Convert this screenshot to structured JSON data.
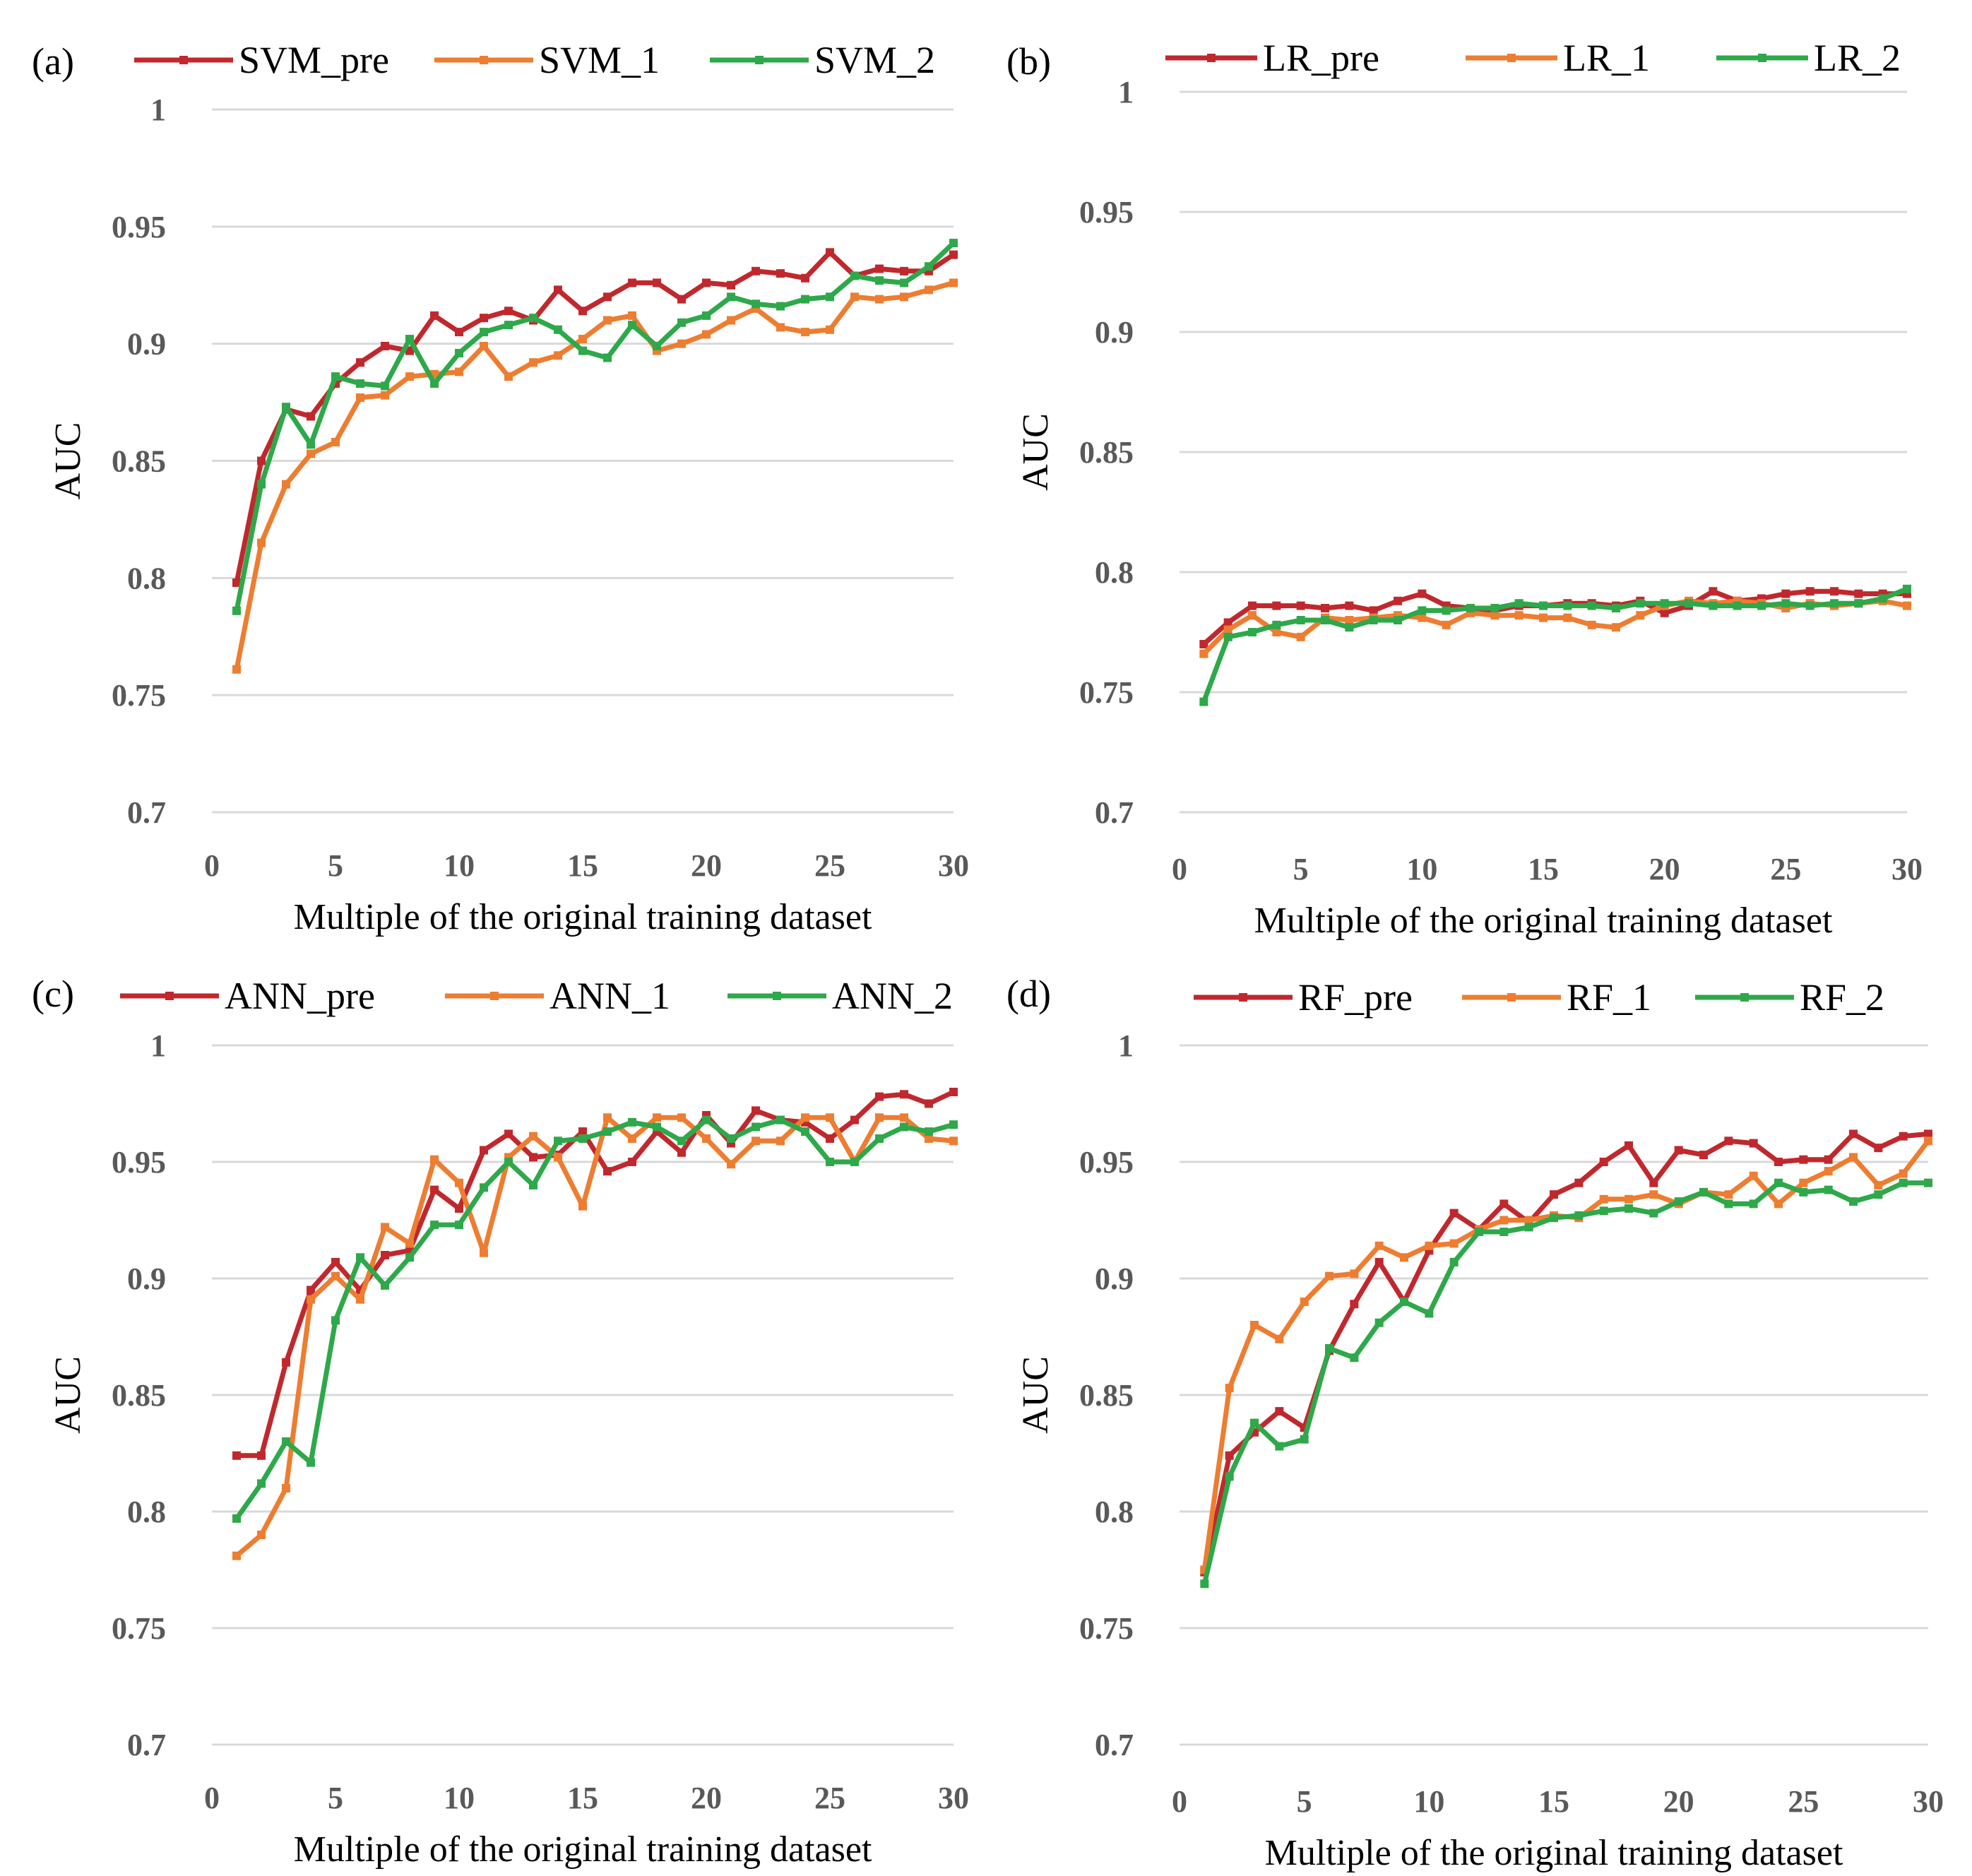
{
  "colors": {
    "pre": "#c0282d",
    "one": "#ed7d31",
    "two": "#2ea84a"
  },
  "chart_data": [
    {
      "type": "line",
      "panel_label": "(a)",
      "xlabel": "Multiple of the original training dataset",
      "ylabel": "AUC",
      "xlim": [
        0,
        30
      ],
      "ylim": [
        0.7,
        1.0
      ],
      "x_ticks": [
        0,
        5,
        10,
        15,
        20,
        25,
        30
      ],
      "y_ticks": [
        0.7,
        0.75,
        0.8,
        0.85,
        0.9,
        0.95,
        1.0
      ],
      "y_tick_labels": [
        "0.7",
        "0.75",
        "0.8",
        "0.85",
        "0.9",
        "0.95",
        "1"
      ],
      "x": [
        1,
        2,
        3,
        4,
        5,
        6,
        7,
        8,
        9,
        10,
        11,
        12,
        13,
        14,
        15,
        16,
        17,
        18,
        19,
        20,
        21,
        22,
        23,
        24,
        25,
        26,
        27,
        28,
        29,
        30
      ],
      "series": [
        {
          "name": "SVM_pre",
          "color_key": "pre",
          "values": [
            0.798,
            0.85,
            0.872,
            0.869,
            0.883,
            0.892,
            0.899,
            0.897,
            0.912,
            0.905,
            0.911,
            0.914,
            0.91,
            0.923,
            0.914,
            0.92,
            0.926,
            0.926,
            0.919,
            0.926,
            0.925,
            0.931,
            0.93,
            0.928,
            0.939,
            0.929,
            0.932,
            0.931,
            0.931,
            0.938
          ]
        },
        {
          "name": "SVM_1",
          "color_key": "one",
          "values": [
            0.761,
            0.815,
            0.84,
            0.853,
            0.858,
            0.877,
            0.878,
            0.886,
            0.887,
            0.888,
            0.899,
            0.886,
            0.892,
            0.895,
            0.902,
            0.91,
            0.912,
            0.897,
            0.9,
            0.904,
            0.91,
            0.915,
            0.907,
            0.905,
            0.906,
            0.92,
            0.919,
            0.92,
            0.923,
            0.926
          ]
        },
        {
          "name": "SVM_2",
          "color_key": "two",
          "values": [
            0.786,
            0.84,
            0.873,
            0.857,
            0.886,
            0.883,
            0.882,
            0.902,
            0.883,
            0.896,
            0.905,
            0.908,
            0.911,
            0.906,
            0.897,
            0.894,
            0.908,
            0.899,
            0.909,
            0.912,
            0.92,
            0.917,
            0.916,
            0.919,
            0.92,
            0.929,
            0.927,
            0.926,
            0.933,
            0.943
          ]
        }
      ]
    },
    {
      "type": "line",
      "panel_label": "(b)",
      "xlabel": "Multiple of the original training dataset",
      "ylabel": "AUC",
      "xlim": [
        0,
        30
      ],
      "ylim": [
        0.7,
        1.0
      ],
      "x_ticks": [
        0,
        5,
        10,
        15,
        20,
        25,
        30
      ],
      "y_ticks": [
        0.7,
        0.75,
        0.8,
        0.85,
        0.9,
        0.95,
        1.0
      ],
      "y_tick_labels": [
        "0.7",
        "0.75",
        "0.8",
        "0.85",
        "0.9",
        "0.95",
        "1"
      ],
      "x": [
        1,
        2,
        3,
        4,
        5,
        6,
        7,
        8,
        9,
        10,
        11,
        12,
        13,
        14,
        15,
        16,
        17,
        18,
        19,
        20,
        21,
        22,
        23,
        24,
        25,
        26,
        27,
        28,
        29,
        30
      ],
      "series": [
        {
          "name": "LR_pre",
          "color_key": "pre",
          "values": [
            0.77,
            0.779,
            0.786,
            0.786,
            0.786,
            0.785,
            0.786,
            0.784,
            0.788,
            0.791,
            0.786,
            0.785,
            0.784,
            0.786,
            0.786,
            0.787,
            0.787,
            0.786,
            0.788,
            0.783,
            0.786,
            0.792,
            0.788,
            0.789,
            0.791,
            0.792,
            0.792,
            0.791,
            0.791,
            0.791
          ]
        },
        {
          "name": "LR_1",
          "color_key": "one",
          "values": [
            0.766,
            0.776,
            0.782,
            0.775,
            0.773,
            0.781,
            0.78,
            0.781,
            0.782,
            0.781,
            0.778,
            0.783,
            0.782,
            0.782,
            0.781,
            0.781,
            0.778,
            0.777,
            0.782,
            0.786,
            0.788,
            0.787,
            0.788,
            0.787,
            0.785,
            0.787,
            0.786,
            0.787,
            0.788,
            0.786
          ]
        },
        {
          "name": "LR_2",
          "color_key": "two",
          "values": [
            0.746,
            0.773,
            0.775,
            0.778,
            0.78,
            0.78,
            0.777,
            0.78,
            0.78,
            0.784,
            0.784,
            0.785,
            0.785,
            0.787,
            0.786,
            0.786,
            0.786,
            0.785,
            0.787,
            0.787,
            0.787,
            0.786,
            0.786,
            0.786,
            0.787,
            0.786,
            0.787,
            0.787,
            0.789,
            0.793
          ]
        }
      ]
    },
    {
      "type": "line",
      "panel_label": "(c)",
      "xlabel": "Multiple of the original training dataset",
      "ylabel": "AUC",
      "xlim": [
        0,
        30
      ],
      "ylim": [
        0.7,
        1.0
      ],
      "x_ticks": [
        0,
        5,
        10,
        15,
        20,
        25,
        30
      ],
      "y_ticks": [
        0.7,
        0.75,
        0.8,
        0.85,
        0.9,
        0.95,
        1.0
      ],
      "y_tick_labels": [
        "0.7",
        "0.75",
        "0.8",
        "0.85",
        "0.9",
        "0.95",
        "1"
      ],
      "x": [
        1,
        2,
        3,
        4,
        5,
        6,
        7,
        8,
        9,
        10,
        11,
        12,
        13,
        14,
        15,
        16,
        17,
        18,
        19,
        20,
        21,
        22,
        23,
        24,
        25,
        26,
        27,
        28,
        29,
        30
      ],
      "series": [
        {
          "name": "ANN_pre",
          "color_key": "pre",
          "values": [
            0.824,
            0.824,
            0.864,
            0.895,
            0.907,
            0.895,
            0.91,
            0.912,
            0.938,
            0.93,
            0.955,
            0.962,
            0.952,
            0.953,
            0.963,
            0.946,
            0.95,
            0.963,
            0.954,
            0.97,
            0.958,
            0.972,
            0.968,
            0.967,
            0.96,
            0.968,
            0.978,
            0.979,
            0.975,
            0.98
          ]
        },
        {
          "name": "ANN_1",
          "color_key": "one",
          "values": [
            0.781,
            0.79,
            0.81,
            0.891,
            0.901,
            0.891,
            0.922,
            0.915,
            0.951,
            0.941,
            0.911,
            0.952,
            0.961,
            0.952,
            0.931,
            0.969,
            0.96,
            0.969,
            0.969,
            0.96,
            0.949,
            0.959,
            0.959,
            0.969,
            0.969,
            0.95,
            0.969,
            0.969,
            0.96,
            0.959
          ]
        },
        {
          "name": "ANN_2",
          "color_key": "two",
          "values": [
            0.797,
            0.812,
            0.83,
            0.821,
            0.882,
            0.909,
            0.897,
            0.909,
            0.923,
            0.923,
            0.939,
            0.95,
            0.94,
            0.959,
            0.96,
            0.963,
            0.967,
            0.965,
            0.959,
            0.968,
            0.96,
            0.965,
            0.968,
            0.963,
            0.95,
            0.95,
            0.96,
            0.965,
            0.963,
            0.966
          ]
        }
      ]
    },
    {
      "type": "line",
      "panel_label": "(d)",
      "xlabel": "Multiple of the original training dataset",
      "ylabel": "AUC",
      "xlim": [
        0,
        30
      ],
      "ylim": [
        0.7,
        1.0
      ],
      "x_ticks": [
        0,
        5,
        10,
        15,
        20,
        25,
        30
      ],
      "y_ticks": [
        0.7,
        0.75,
        0.8,
        0.85,
        0.9,
        0.95,
        1.0
      ],
      "y_tick_labels": [
        "0.7",
        "0.75",
        "0.8",
        "0.85",
        "0.9",
        "0.95",
        "1"
      ],
      "x": [
        1,
        2,
        3,
        4,
        5,
        6,
        7,
        8,
        9,
        10,
        11,
        12,
        13,
        14,
        15,
        16,
        17,
        18,
        19,
        20,
        21,
        22,
        23,
        24,
        25,
        26,
        27,
        28,
        29,
        30
      ],
      "series": [
        {
          "name": "RF_pre",
          "color_key": "pre",
          "values": [
            0.774,
            0.824,
            0.834,
            0.843,
            0.836,
            0.869,
            0.889,
            0.907,
            0.89,
            0.912,
            0.928,
            0.921,
            0.932,
            0.924,
            0.936,
            0.941,
            0.95,
            0.957,
            0.941,
            0.955,
            0.953,
            0.959,
            0.958,
            0.95,
            0.951,
            0.951,
            0.962,
            0.956,
            0.961,
            0.962
          ]
        },
        {
          "name": "RF_1",
          "color_key": "one",
          "values": [
            0.775,
            0.853,
            0.88,
            0.874,
            0.89,
            0.901,
            0.902,
            0.914,
            0.909,
            0.914,
            0.915,
            0.921,
            0.925,
            0.925,
            0.927,
            0.926,
            0.934,
            0.934,
            0.936,
            0.932,
            0.937,
            0.936,
            0.944,
            0.932,
            0.941,
            0.946,
            0.952,
            0.94,
            0.945,
            0.959
          ]
        },
        {
          "name": "RF_2",
          "color_key": "two",
          "values": [
            0.769,
            0.815,
            0.838,
            0.828,
            0.831,
            0.87,
            0.866,
            0.881,
            0.89,
            0.885,
            0.907,
            0.92,
            0.92,
            0.922,
            0.926,
            0.927,
            0.929,
            0.93,
            0.928,
            0.933,
            0.937,
            0.932,
            0.932,
            0.941,
            0.937,
            0.938,
            0.933,
            0.936,
            0.941,
            0.941
          ]
        }
      ]
    }
  ]
}
